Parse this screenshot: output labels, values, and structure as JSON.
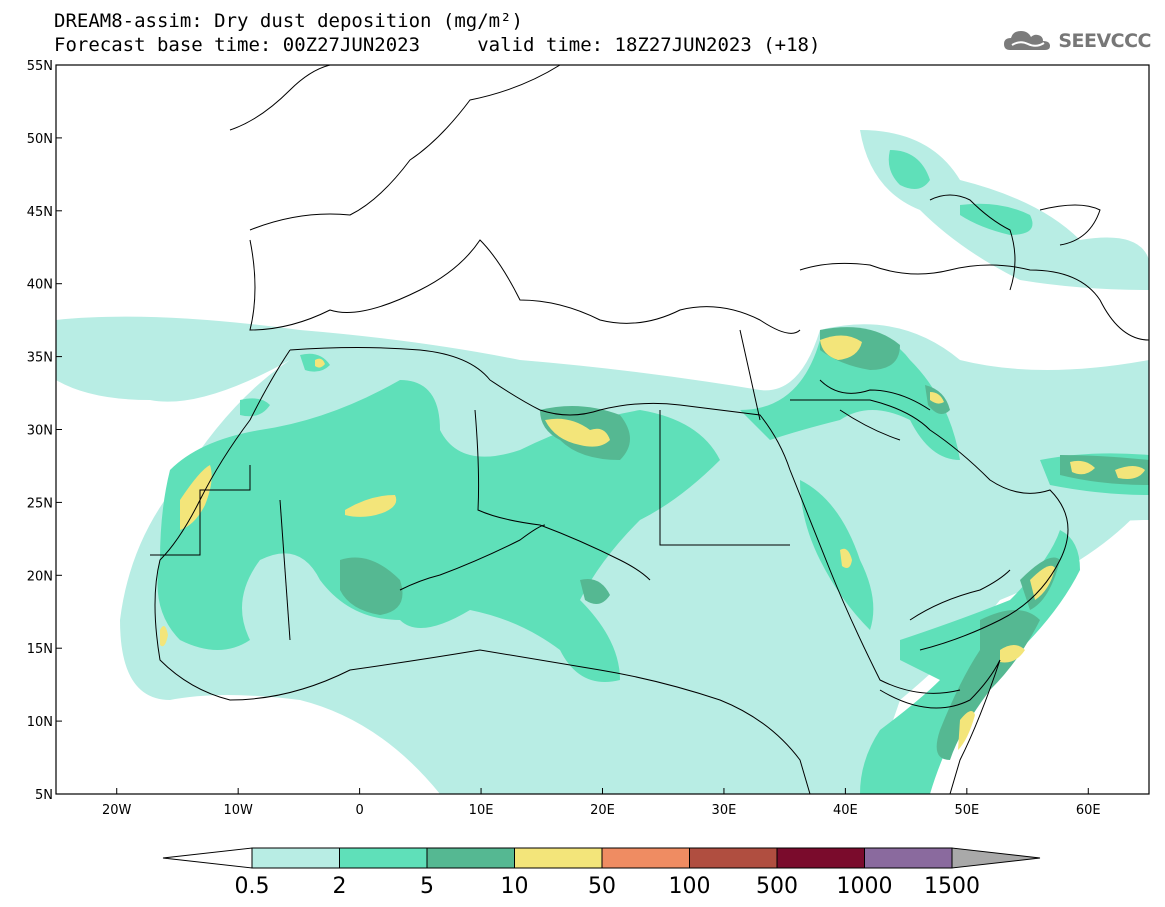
{
  "header": {
    "line1": "DREAM8-assim: Dry dust deposition (mg/m²)",
    "line2": "Forecast base time: 00Z27JUN2023     valid time: 18Z27JUN2023 (+18)"
  },
  "logo": {
    "text": "SEEVCCC",
    "icon": "cloud-icon"
  },
  "map": {
    "lon_range": [
      -25,
      65
    ],
    "lat_range": [
      5,
      55
    ],
    "lat_labels": [
      "55N",
      "50N",
      "45N",
      "40N",
      "35N",
      "30N",
      "25N",
      "20N",
      "15N",
      "10N",
      "5N"
    ],
    "lon_labels": [
      "20W",
      "10W",
      "0",
      "10E",
      "20E",
      "30E",
      "40E",
      "50E",
      "60E"
    ]
  },
  "colorbar": {
    "labels": [
      "0.5",
      "2",
      "5",
      "10",
      "50",
      "100",
      "500",
      "1000",
      "1500"
    ],
    "colors": [
      "#ffffff",
      "#b8ede4",
      "#5fe0b9",
      "#55b892",
      "#f3e57a",
      "#ef8c62",
      "#b04e40",
      "#7a0b2c",
      "#8a6a9e",
      "#a9a9a9"
    ]
  }
}
